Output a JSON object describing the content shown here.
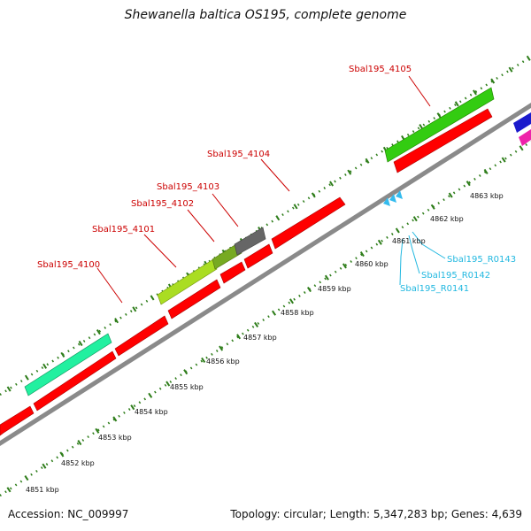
{
  "header": {
    "title": "Shewanella baltica OS195, complete genome"
  },
  "footer": {
    "accession": "Accession: NC_009997",
    "summary": "Topology: circular; Length: 5,347,283 bp; Genes: 4,639"
  },
  "colors": {
    "cds": "#ff0000",
    "backbone": "#888888",
    "tick": "#2e7d1a",
    "gene_label": "#cc0000",
    "rna_label": "#22b8e0",
    "mint": "#22f0a0",
    "green": "#33cc11",
    "yellow_green": "#aadd22",
    "olive": "#77aa22",
    "gray": "#666666",
    "blue": "#1a1acc",
    "magenta": "#ee22aa"
  },
  "gene_labels": [
    {
      "text": "Sbal195_4105"
    },
    {
      "text": "Sbal195_4104"
    },
    {
      "text": "Sbal195_4103"
    },
    {
      "text": "Sbal195_4102"
    },
    {
      "text": "Sbal195_4101"
    },
    {
      "text": "Sbal195_4100"
    }
  ],
  "rna_labels": [
    {
      "text": "Sbal195_R0143"
    },
    {
      "text": "Sbal195_R0142"
    },
    {
      "text": "Sbal195_R0141"
    }
  ],
  "kbp_ticks": [
    {
      "text": "4851 kbp"
    },
    {
      "text": "4852 kbp"
    },
    {
      "text": "4853 kbp"
    },
    {
      "text": "4854 kbp"
    },
    {
      "text": "4855 kbp"
    },
    {
      "text": "4856 kbp"
    },
    {
      "text": "4857 kbp"
    },
    {
      "text": "4858 kbp"
    },
    {
      "text": "4859 kbp"
    },
    {
      "text": "4860 kbp"
    },
    {
      "text": "4861 kbp"
    },
    {
      "text": "4862 kbp"
    },
    {
      "text": "4863 kbp"
    }
  ]
}
